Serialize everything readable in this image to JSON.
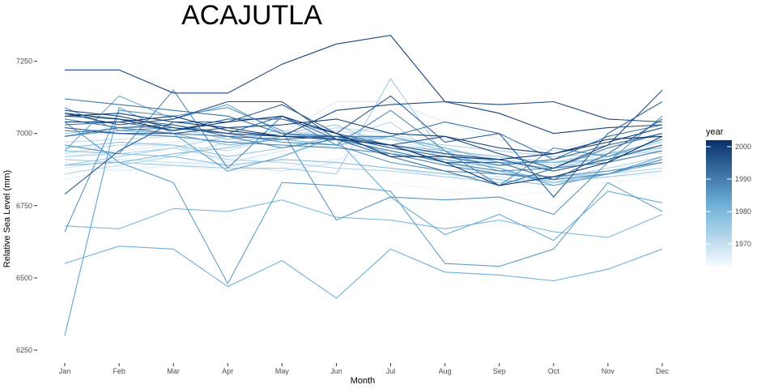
{
  "chart_data": {
    "type": "line",
    "title": "ACAJUTLA",
    "xlabel": "Month",
    "ylabel": "Relative Sea Level (mm)",
    "categories": [
      "Jan",
      "Feb",
      "Mar",
      "Apr",
      "May",
      "Jun",
      "Jul",
      "Aug",
      "Sep",
      "Oct",
      "Nov",
      "Dec"
    ],
    "ylim": [
      6250,
      7350
    ],
    "yticks": [
      6250,
      6500,
      6750,
      7000,
      7250
    ],
    "ytick_labels": [
      "6250",
      "6500",
      "6750",
      "7000",
      "7250"
    ],
    "grid": false,
    "legend": {
      "title": "year",
      "placement": "right",
      "type": "colorbar",
      "range": [
        1963,
        2002
      ],
      "ticks": [
        1970,
        1980,
        1990,
        2000
      ],
      "tick_labels": [
        "1970",
        "1980",
        "1990",
        "2000"
      ],
      "color_low": "#f7fbff",
      "color_high": "#08306b"
    },
    "series": [
      {
        "year": 1963,
        "values": [
          6870,
          6880,
          6890,
          6890,
          6860,
          6840,
          6820,
          6810,
          6790,
          6750,
          6740,
          6770
        ]
      },
      {
        "year": 1964,
        "values": [
          6910,
          6900,
          6920,
          6930,
          6960,
          6970,
          6830,
          6800,
          6780,
          6800,
          6830,
          6850
        ]
      },
      {
        "year": 1965,
        "values": [
          6840,
          6880,
          6900,
          6900,
          6930,
          6950,
          6940,
          6910,
          6850,
          6830,
          6850,
          6860
        ]
      },
      {
        "year": 1966,
        "values": [
          6900,
          6870,
          6890,
          6870,
          6880,
          6910,
          6950,
          6900,
          6870,
          6850,
          6880,
          6900
        ]
      },
      {
        "year": 1967,
        "values": [
          6950,
          6960,
          6970,
          6980,
          7000,
          7110,
          7110,
          7040,
          6980,
          6940,
          6990,
          6970
        ]
      },
      {
        "year": 1968,
        "values": [
          6920,
          6940,
          6960,
          6900,
          6940,
          6960,
          6960,
          6930,
          6900,
          6900,
          6940,
          6930
        ]
      },
      {
        "year": 1969,
        "values": [
          6880,
          6910,
          6900,
          6890,
          6870,
          6900,
          6880,
          6850,
          6850,
          6830,
          6870,
          6900
        ]
      },
      {
        "year": 1970,
        "values": [
          6970,
          6980,
          6990,
          6970,
          6990,
          7010,
          6980,
          6930,
          6890,
          6880,
          6910,
          6950
        ]
      },
      {
        "year": 1971,
        "values": [
          6930,
          6960,
          6960,
          6940,
          6990,
          7020,
          7000,
          6950,
          6910,
          6890,
          6920,
          6940
        ]
      },
      {
        "year": 1972,
        "values": [
          6860,
          6890,
          6920,
          6970,
          6990,
          6980,
          7040,
          6900,
          6860,
          6840,
          6880,
          6920
        ]
      },
      {
        "year": 1973,
        "values": [
          6920,
          6930,
          6950,
          6910,
          6900,
          6880,
          6870,
          6850,
          6830,
          6850,
          6860,
          6880
        ]
      },
      {
        "year": 1974,
        "values": [
          6890,
          6920,
          6950,
          6990,
          7010,
          6990,
          6980,
          6960,
          6940,
          6920,
          6930,
          6970
        ]
      },
      {
        "year": 1975,
        "values": [
          6910,
          6900,
          6890,
          6880,
          6880,
          6860,
          7190,
          6920,
          6880,
          6830,
          6850,
          6870
        ]
      },
      {
        "year": 1976,
        "values": [
          7000,
          7020,
          7020,
          6980,
          7000,
          7030,
          6950,
          6930,
          6900,
          6880,
          6920,
          6960
        ]
      },
      {
        "year": 1977,
        "values": [
          6950,
          6970,
          6960,
          6920,
          6950,
          6990,
          6960,
          6940,
          6920,
          6900,
          6930,
          6950
        ]
      },
      {
        "year": 1978,
        "values": [
          6940,
          6930,
          6920,
          6890,
          6910,
          6900,
          6880,
          6860,
          6840,
          6820,
          6860,
          6900
        ]
      },
      {
        "year": 1979,
        "values": [
          6890,
          6900,
          6930,
          6950,
          6990,
          6980,
          6990,
          6940,
          6870,
          6830,
          6860,
          6900
        ]
      },
      {
        "year": 1980,
        "values": [
          6680,
          6670,
          6740,
          6730,
          6770,
          6710,
          6700,
          6670,
          6700,
          6660,
          6640,
          6720
        ]
      },
      {
        "year": 1981,
        "values": [
          6990,
          7010,
          7000,
          6960,
          6980,
          6960,
          6990,
          6950,
          6900,
          6900,
          6910,
          6960
        ]
      },
      {
        "year": 1982,
        "values": [
          6550,
          6610,
          6600,
          6470,
          6560,
          6430,
          6600,
          6520,
          6510,
          6490,
          6530,
          6600
        ]
      },
      {
        "year": 1983,
        "values": [
          6940,
          7130,
          7050,
          7100,
          7000,
          6980,
          6780,
          6650,
          6720,
          6630,
          6800,
          6760
        ]
      },
      {
        "year": 1984,
        "values": [
          6300,
          7090,
          7000,
          6870,
          6920,
          6990,
          6930,
          6910,
          6880,
          6820,
          6860,
          6920
        ]
      },
      {
        "year": 1985,
        "values": [
          7040,
          6900,
          6830,
          6480,
          6830,
          6820,
          6800,
          6550,
          6540,
          6600,
          6830,
          6730
        ]
      },
      {
        "year": 1986,
        "values": [
          6660,
          7080,
          7060,
          7090,
          7010,
          6700,
          6780,
          6770,
          6780,
          6720,
          6900,
          7060
        ]
      },
      {
        "year": 1987,
        "values": [
          7090,
          7010,
          7020,
          7000,
          6970,
          6960,
          6900,
          6870,
          6860,
          6850,
          6870,
          6900
        ]
      },
      {
        "year": 1988,
        "values": [
          6960,
          6930,
          7150,
          6880,
          7060,
          6960,
          7080,
          6940,
          6820,
          6950,
          6920,
          6980
        ]
      },
      {
        "year": 1989,
        "values": [
          7010,
          7000,
          6990,
          6970,
          6960,
          6950,
          6930,
          6890,
          6860,
          6840,
          6860,
          6910
        ]
      },
      {
        "year": 1990,
        "values": [
          7050,
          7020,
          7000,
          6990,
          6950,
          6980,
          6940,
          6900,
          6870,
          6880,
          6900,
          6940
        ]
      },
      {
        "year": 1991,
        "values": [
          7120,
          7100,
          7080,
          7060,
          7000,
          6990,
          6990,
          7040,
          7000,
          6910,
          6990,
          7030
        ]
      },
      {
        "year": 1992,
        "values": [
          7060,
          7050,
          7030,
          7000,
          7060,
          6980,
          6920,
          6870,
          6820,
          6880,
          6950,
          7000
        ]
      },
      {
        "year": 1993,
        "values": [
          6990,
          7020,
          7030,
          6990,
          6980,
          6990,
          6950,
          6920,
          6890,
          6910,
          6960,
          7000
        ]
      },
      {
        "year": 1994,
        "values": [
          7030,
          7040,
          7010,
          7050,
          7050,
          7000,
          6960,
          6900,
          6900,
          6840,
          6930,
          7050
        ]
      },
      {
        "year": 1995,
        "values": [
          6790,
          6940,
          7040,
          7040,
          7100,
          7000,
          7130,
          6970,
          7000,
          6780,
          7000,
          7110
        ]
      },
      {
        "year": 1996,
        "values": [
          7020,
          7000,
          7000,
          7020,
          6990,
          6990,
          6960,
          6930,
          6910,
          6870,
          6910,
          6960
        ]
      },
      {
        "year": 1997,
        "values": [
          7070,
          7030,
          7050,
          7110,
          7110,
          6980,
          6960,
          6990,
          6930,
          6880,
          6960,
          7150
        ]
      },
      {
        "year": 1998,
        "values": [
          7080,
          7060,
          7020,
          7000,
          6990,
          7080,
          7100,
          7110,
          7100,
          7110,
          7050,
          7040
        ]
      },
      {
        "year": 1999,
        "values": [
          7220,
          7220,
          7140,
          7140,
          7240,
          7310,
          7340,
          7110,
          7070,
          7000,
          7020,
          7030
        ]
      },
      {
        "year": 2000,
        "values": [
          7060,
          7070,
          7040,
          7020,
          7030,
          7050,
          7000,
          6990,
          6950,
          6930,
          6970,
          7020
        ]
      },
      {
        "year": 2001,
        "values": [
          7040,
          7040,
          7060,
          7010,
          6990,
          6980,
          6960,
          6900,
          6820,
          6850,
          6900,
          6990
        ]
      },
      {
        "year": 2002,
        "values": [
          7070,
          7050,
          7010,
          7040,
          7060,
          7000,
          6920,
          6920,
          6910,
          6930,
          6980,
          6990
        ]
      }
    ]
  }
}
